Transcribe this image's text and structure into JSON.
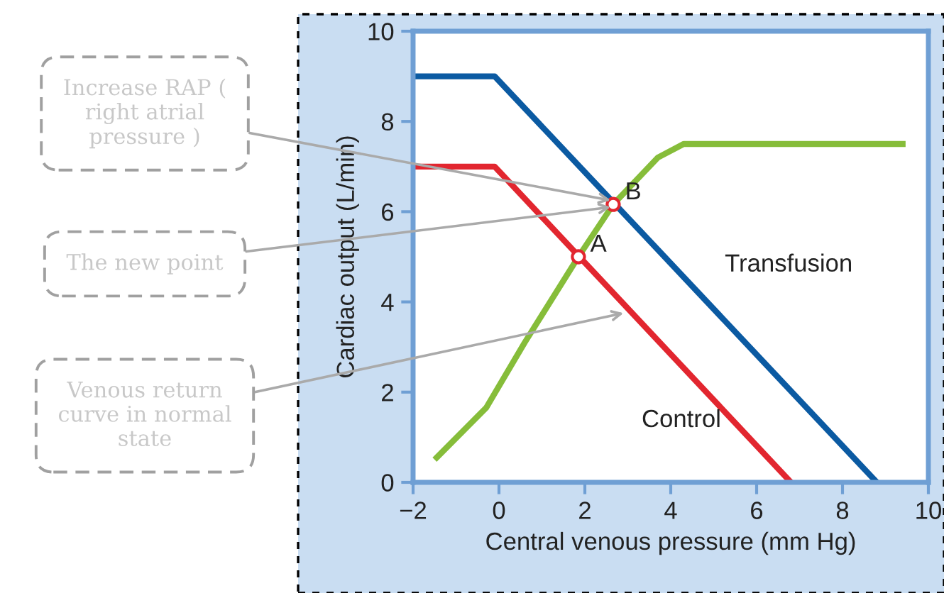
{
  "chart_data": {
    "type": "line",
    "xlabel": "Central venous pressure (mm Hg)",
    "ylabel": "Cardiac output (L/min)",
    "xlim": [
      -2,
      10
    ],
    "ylim": [
      0,
      10
    ],
    "xticks": [
      {
        "value": -2,
        "label": "−2"
      },
      0,
      2,
      4,
      6,
      8,
      10
    ],
    "yticks": [
      0,
      2,
      4,
      6,
      8,
      10
    ],
    "grid": false,
    "marker": "none",
    "line_style": "solid",
    "series": [
      {
        "name": "Transfusion",
        "color": "#0b5aa2",
        "x": [
          -2,
          -0.1,
          8.8
        ],
        "values": [
          9,
          9,
          0
        ]
      },
      {
        "name": "Control",
        "color": "#e2262f",
        "x": [
          -2,
          -0.1,
          6.8
        ],
        "values": [
          7,
          7,
          0
        ]
      },
      {
        "color": "#86bd3a",
        "x": [
          -1.45,
          -0.3,
          0.6,
          1.85,
          2.66,
          3.7,
          4.3,
          9.4
        ],
        "values": [
          0.55,
          1.65,
          3.1,
          5.0,
          6.16,
          7.2,
          7.5,
          7.5
        ]
      },
      {
        "type": "scatter",
        "marker": "circle",
        "color": "#e2262f",
        "x": [
          1.85,
          2.66
        ],
        "values": [
          5.0,
          6.16
        ]
      }
    ],
    "annotations": [
      {
        "text": "A",
        "x": 1.85,
        "y": 5.0
      },
      {
        "text": "B",
        "x": 2.66,
        "y": 6.16
      },
      {
        "text": "Increase RAP (\nright atrial\npressure )",
        "x": 2.6,
        "y": 6.25
      },
      {
        "text": "The new point",
        "x": 2.6,
        "y": 6.1
      },
      {
        "text": "Venous return\ncurve in normal\nstate",
        "x": 2.9,
        "y": 3.75
      }
    ]
  }
}
